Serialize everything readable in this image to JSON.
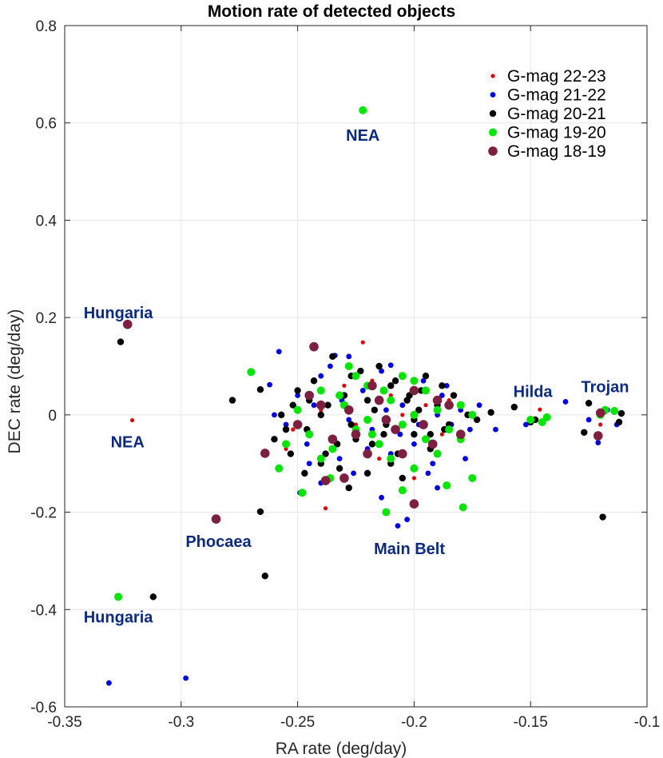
{
  "chart_data": {
    "type": "scatter",
    "title": "Motion rate of detected objects",
    "xlabel": "RA rate (deg/day)",
    "ylabel": "DEC rate (deg/day)",
    "xlim": [
      -0.35,
      -0.1
    ],
    "ylim": [
      -0.6,
      0.8
    ],
    "x_ticks": [
      -0.35,
      -0.3,
      -0.25,
      -0.2,
      -0.15,
      -0.1
    ],
    "x_tick_labels": [
      "-0.35",
      "-0.3",
      "-0.25",
      "-0.2",
      "-0.15",
      "-0.1"
    ],
    "y_ticks": [
      -0.6,
      -0.4,
      -0.2,
      0,
      0.2,
      0.4,
      0.6,
      0.8
    ],
    "y_tick_labels": [
      "-0.6",
      "-0.4",
      "-0.2",
      "0",
      "0.2",
      "0.4",
      "0.6",
      "0.8"
    ],
    "grid": true,
    "legend_position": "top-right",
    "series": [
      {
        "name": "G-mag 22-23",
        "color": "#e00000",
        "size": "smallest",
        "points": [
          [
            -0.321,
            -0.011
          ],
          [
            -0.222,
            0.149
          ],
          [
            -0.238,
            -0.192
          ],
          [
            -0.146,
            0.011
          ],
          [
            -0.2,
            -0.06
          ],
          [
            -0.21,
            0.04
          ],
          [
            -0.225,
            -0.02
          ],
          [
            -0.195,
            0.02
          ],
          [
            -0.23,
            0.06
          ],
          [
            -0.215,
            -0.09
          ],
          [
            -0.205,
            0.0
          ],
          [
            -0.24,
            0.01
          ],
          [
            -0.188,
            -0.04
          ],
          [
            -0.218,
            0.07
          ],
          [
            -0.252,
            -0.03
          ],
          [
            -0.12,
            -0.02
          ],
          [
            -0.118,
            0.005
          ],
          [
            -0.255,
            -0.07
          ],
          [
            -0.185,
            0.03
          ],
          [
            -0.2,
            -0.13
          ]
        ]
      },
      {
        "name": "G-mag 21-22",
        "color": "#0000e6",
        "size": "small",
        "points": [
          [
            -0.331,
            -0.551
          ],
          [
            -0.298,
            -0.541
          ],
          [
            -0.258,
            0.13
          ],
          [
            -0.234,
            0.122
          ],
          [
            -0.228,
            0.12
          ],
          [
            -0.21,
            0.102
          ],
          [
            -0.207,
            -0.228
          ],
          [
            -0.203,
            -0.215
          ],
          [
            -0.135,
            0.027
          ],
          [
            -0.121,
            -0.057
          ],
          [
            -0.262,
            0.062
          ],
          [
            -0.249,
            -0.16
          ],
          [
            -0.245,
            -0.1
          ],
          [
            -0.24,
            0.08
          ],
          [
            -0.235,
            -0.05
          ],
          [
            -0.231,
            0.03
          ],
          [
            -0.226,
            -0.12
          ],
          [
            -0.222,
            0.05
          ],
          [
            -0.218,
            -0.03
          ],
          [
            -0.214,
            0.09
          ],
          [
            -0.21,
            -0.08
          ],
          [
            -0.205,
            0.02
          ],
          [
            -0.2,
            -0.06
          ],
          [
            -0.196,
            0.07
          ],
          [
            -0.192,
            -0.1
          ],
          [
            -0.188,
            0.04
          ],
          [
            -0.184,
            -0.02
          ],
          [
            -0.18,
            0.01
          ],
          [
            -0.176,
            -0.03
          ],
          [
            -0.172,
            0.02
          ],
          [
            -0.19,
            -0.15
          ],
          [
            -0.25,
            0.04
          ],
          [
            -0.228,
            -0.01
          ],
          [
            -0.212,
            0.01
          ],
          [
            -0.198,
            -0.02
          ],
          [
            -0.186,
            0.06
          ],
          [
            -0.255,
            -0.02
          ],
          [
            -0.243,
            0.02
          ],
          [
            -0.2,
            0.05
          ],
          [
            -0.22,
            -0.07
          ],
          [
            -0.165,
            -0.03
          ],
          [
            -0.152,
            -0.02
          ],
          [
            -0.125,
            -0.01
          ],
          [
            -0.113,
            -0.02
          ],
          [
            -0.117,
            0.01
          ],
          [
            -0.24,
            -0.14
          ],
          [
            -0.214,
            -0.17
          ],
          [
            -0.194,
            -0.12
          ],
          [
            -0.178,
            -0.09
          ],
          [
            -0.236,
            0.1
          ],
          [
            -0.206,
            -0.04
          ],
          [
            -0.246,
            -0.06
          ],
          [
            -0.232,
            -0.09
          ],
          [
            -0.19,
            0.0
          ],
          [
            -0.26,
            0.0
          ]
        ]
      },
      {
        "name": "G-mag 20-21",
        "color": "#000000",
        "size": "medium",
        "points": [
          [
            -0.326,
            0.15
          ],
          [
            -0.312,
            -0.374
          ],
          [
            -0.278,
            0.03
          ],
          [
            -0.266,
            -0.199
          ],
          [
            -0.264,
            -0.331
          ],
          [
            -0.266,
            0.052
          ],
          [
            -0.157,
            0.016
          ],
          [
            -0.127,
            -0.036
          ],
          [
            -0.125,
            0.024
          ],
          [
            -0.119,
            -0.21
          ],
          [
            -0.111,
            0.003
          ],
          [
            -0.112,
            -0.015
          ],
          [
            -0.26,
            -0.05
          ],
          [
            -0.257,
            0.0
          ],
          [
            -0.253,
            -0.08
          ],
          [
            -0.25,
            0.05
          ],
          [
            -0.246,
            -0.03
          ],
          [
            -0.243,
            0.07
          ],
          [
            -0.24,
            -0.1
          ],
          [
            -0.237,
            0.02
          ],
          [
            -0.233,
            -0.06
          ],
          [
            -0.23,
            0.04
          ],
          [
            -0.227,
            -0.02
          ],
          [
            -0.223,
            0.09
          ],
          [
            -0.22,
            -0.12
          ],
          [
            -0.217,
            0.01
          ],
          [
            -0.213,
            -0.04
          ],
          [
            -0.21,
            0.06
          ],
          [
            -0.207,
            -0.08
          ],
          [
            -0.203,
            0.03
          ],
          [
            -0.2,
            -0.01
          ],
          [
            -0.197,
            0.05
          ],
          [
            -0.193,
            -0.07
          ],
          [
            -0.19,
            0.02
          ],
          [
            -0.187,
            -0.03
          ],
          [
            -0.183,
            0.04
          ],
          [
            -0.18,
            -0.05
          ],
          [
            -0.177,
            0.0
          ],
          [
            -0.173,
            -0.01
          ],
          [
            -0.235,
            0.12
          ],
          [
            -0.228,
            -0.15
          ],
          [
            -0.215,
            0.1
          ],
          [
            -0.205,
            -0.13
          ],
          [
            -0.195,
            0.08
          ],
          [
            -0.245,
            0.03
          ],
          [
            -0.225,
            -0.05
          ],
          [
            -0.212,
            -0.02
          ],
          [
            -0.198,
            0.01
          ],
          [
            -0.185,
            -0.02
          ],
          [
            -0.255,
            -0.03
          ],
          [
            -0.24,
            0.0
          ],
          [
            -0.22,
            0.03
          ],
          [
            -0.2,
            -0.04
          ],
          [
            -0.238,
            -0.08
          ],
          [
            -0.208,
            0.07
          ],
          [
            -0.252,
            0.02
          ],
          [
            -0.232,
            -0.11
          ],
          [
            -0.218,
            -0.06
          ],
          [
            -0.202,
            0.04
          ],
          [
            -0.188,
            0.06
          ],
          [
            -0.247,
            -0.12
          ],
          [
            -0.227,
            0.08
          ],
          [
            -0.21,
            -0.1
          ],
          [
            -0.193,
            -0.04
          ],
          [
            -0.167,
            0.005
          ],
          [
            -0.15,
            -0.015
          ],
          [
            -0.148,
            -0.01
          ]
        ]
      },
      {
        "name": "G-mag 19-20",
        "color": "#00e600",
        "size": "large",
        "points": [
          [
            -0.222,
            0.626
          ],
          [
            -0.327,
            -0.374
          ],
          [
            -0.27,
            0.088
          ],
          [
            -0.258,
            -0.11
          ],
          [
            -0.248,
            -0.16
          ],
          [
            -0.212,
            -0.2
          ],
          [
            -0.205,
            -0.155
          ],
          [
            -0.186,
            -0.145
          ],
          [
            -0.179,
            -0.19
          ],
          [
            -0.175,
            -0.13
          ],
          [
            -0.143,
            -0.005
          ],
          [
            -0.118,
            0.01
          ],
          [
            -0.114,
            0.008
          ],
          [
            -0.15,
            -0.01
          ],
          [
            -0.245,
            -0.04
          ],
          [
            -0.24,
            0.05
          ],
          [
            -0.235,
            -0.07
          ],
          [
            -0.23,
            0.02
          ],
          [
            -0.225,
            -0.03
          ],
          [
            -0.22,
            0.06
          ],
          [
            -0.215,
            -0.06
          ],
          [
            -0.21,
            0.03
          ],
          [
            -0.205,
            -0.02
          ],
          [
            -0.2,
            0.07
          ],
          [
            -0.195,
            -0.05
          ],
          [
            -0.19,
            0.01
          ],
          [
            -0.185,
            -0.03
          ],
          [
            -0.18,
            0.02
          ],
          [
            -0.228,
            0.1
          ],
          [
            -0.21,
            -0.09
          ],
          [
            -0.195,
            0.05
          ],
          [
            -0.24,
            -0.09
          ],
          [
            -0.22,
            -0.01
          ],
          [
            -0.2,
            0.0
          ],
          [
            -0.25,
            0.01
          ],
          [
            -0.232,
            0.04
          ],
          [
            -0.218,
            -0.04
          ],
          [
            -0.205,
            0.08
          ],
          [
            -0.19,
            -0.08
          ],
          [
            -0.236,
            -0.13
          ],
          [
            -0.213,
            0.05
          ],
          [
            -0.18,
            -0.05
          ],
          [
            -0.255,
            -0.06
          ],
          [
            -0.2,
            -0.11
          ],
          [
            -0.225,
            0.08
          ],
          [
            -0.175,
            0.0
          ],
          [
            -0.145,
            -0.015
          ],
          [
            -0.12,
            0.0
          ]
        ]
      },
      {
        "name": "G-mag 18-19",
        "color": "#7d1f40",
        "size": "largest",
        "points": [
          [
            -0.323,
            0.186
          ],
          [
            -0.285,
            -0.214
          ],
          [
            -0.264,
            -0.079
          ],
          [
            -0.243,
            0.14
          ],
          [
            -0.238,
            -0.135
          ],
          [
            -0.2,
            -0.183
          ],
          [
            -0.121,
            -0.043
          ],
          [
            -0.25,
            -0.02
          ],
          [
            -0.245,
            0.04
          ],
          [
            -0.235,
            -0.05
          ],
          [
            -0.228,
            0.01
          ],
          [
            -0.22,
            -0.08
          ],
          [
            -0.215,
            0.03
          ],
          [
            -0.208,
            -0.03
          ],
          [
            -0.2,
            0.05
          ],
          [
            -0.192,
            -0.06
          ],
          [
            -0.185,
            0.02
          ],
          [
            -0.23,
            -0.13
          ],
          [
            -0.212,
            -0.01
          ],
          [
            -0.196,
            -0.02
          ],
          [
            -0.18,
            -0.04
          ],
          [
            -0.24,
            0.02
          ],
          [
            -0.218,
            0.06
          ],
          [
            -0.205,
            -0.08
          ],
          [
            -0.19,
            0.03
          ],
          [
            -0.225,
            -0.04
          ],
          [
            -0.12,
            0.004
          ]
        ]
      }
    ],
    "annotations": [
      {
        "text": "NEA",
        "x": -0.222,
        "y": 0.575
      },
      {
        "text": "Hungaria",
        "x": -0.327,
        "y": 0.21
      },
      {
        "text": "NEA",
        "x": -0.323,
        "y": -0.055
      },
      {
        "text": "Hilda",
        "x": -0.149,
        "y": 0.048
      },
      {
        "text": "Trojan",
        "x": -0.118,
        "y": 0.058
      },
      {
        "text": "Phocaea",
        "x": -0.284,
        "y": -0.26
      },
      {
        "text": "Main Belt",
        "x": -0.202,
        "y": -0.275
      },
      {
        "text": "Hungaria",
        "x": -0.327,
        "y": -0.415
      }
    ]
  }
}
